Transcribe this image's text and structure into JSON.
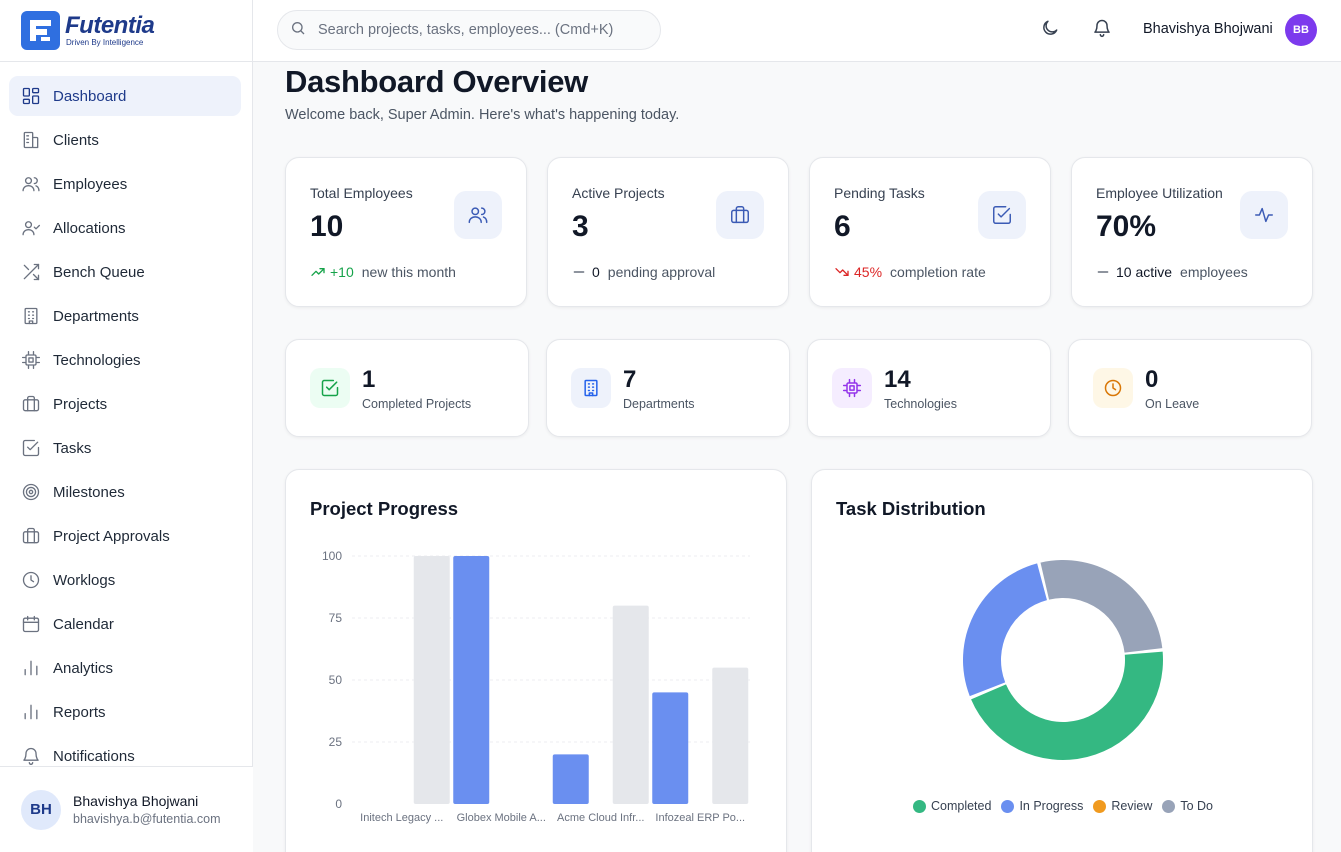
{
  "brand": {
    "name": "Futentia",
    "tagline": "Driven By Intelligence"
  },
  "sidebar": {
    "items": [
      {
        "label": "Dashboard",
        "icon": "dashboard-icon",
        "active": true
      },
      {
        "label": "Clients",
        "icon": "building-icon"
      },
      {
        "label": "Employees",
        "icon": "users-icon"
      },
      {
        "label": "Allocations",
        "icon": "user-check-icon"
      },
      {
        "label": "Bench Queue",
        "icon": "shuffle-icon"
      },
      {
        "label": "Departments",
        "icon": "office-building-icon"
      },
      {
        "label": "Technologies",
        "icon": "cpu-icon"
      },
      {
        "label": "Projects",
        "icon": "briefcase-icon"
      },
      {
        "label": "Tasks",
        "icon": "check-square-icon"
      },
      {
        "label": "Milestones",
        "icon": "target-icon"
      },
      {
        "label": "Project Approvals",
        "icon": "briefcase-icon"
      },
      {
        "label": "Worklogs",
        "icon": "clock-icon"
      },
      {
        "label": "Calendar",
        "icon": "calendar-icon"
      },
      {
        "label": "Analytics",
        "icon": "bar-chart-icon"
      },
      {
        "label": "Reports",
        "icon": "bar-chart-icon"
      },
      {
        "label": "Notifications",
        "icon": "bell-icon"
      }
    ],
    "footer": {
      "initials": "BH",
      "name": "Bhavishya Bhojwani",
      "email": "bhavishya.b@futentia.com"
    }
  },
  "header": {
    "search_placeholder": "Search projects, tasks, employees... (Cmd+K)",
    "user_name": "Bhavishya Bhojwani",
    "user_initials": "BB"
  },
  "page": {
    "title": "Dashboard Overview",
    "subtitle": "Welcome back, Super Admin. Here's what's happening today."
  },
  "stats": [
    {
      "label": "Total Employees",
      "value": "10",
      "trend_value": "+10",
      "trend_text": "new this month",
      "trend": "up",
      "icon": "users-icon"
    },
    {
      "label": "Active Projects",
      "value": "3",
      "trend_value": "0",
      "trend_text": "pending approval",
      "trend": "flat",
      "icon": "briefcase-icon"
    },
    {
      "label": "Pending Tasks",
      "value": "6",
      "trend_value": "45%",
      "trend_text": "completion rate",
      "trend": "down",
      "icon": "check-square-icon"
    },
    {
      "label": "Employee Utilization",
      "value": "70%",
      "trend_value": "10 active",
      "trend_text": "employees",
      "trend": "flat",
      "icon": "activity-icon"
    }
  ],
  "mini_stats": [
    {
      "value": "1",
      "label": "Completed Projects",
      "icon": "check-square-icon",
      "color": "#16a34a",
      "bg": "#ecfdf3"
    },
    {
      "value": "7",
      "label": "Departments",
      "icon": "office-building-icon",
      "color": "#2563eb",
      "bg": "#eef2fb"
    },
    {
      "value": "14",
      "label": "Technologies",
      "icon": "cpu-icon",
      "color": "#9333ea",
      "bg": "#f5edff"
    },
    {
      "value": "0",
      "label": "On Leave",
      "icon": "clock-icon",
      "color": "#d97706",
      "bg": "#fef7e6"
    }
  ],
  "project_progress": {
    "title": "Project Progress",
    "chart_data": {
      "type": "bar",
      "categories": [
        "Initech Legacy ...",
        "Globex Mobile A...",
        "Acme Cloud Infr...",
        "Infozeal ERP Po..."
      ],
      "series": [
        {
          "values": [
            0,
            100,
            20,
            45
          ],
          "color": "#6a8ff0"
        },
        {
          "values": [
            100,
            0,
            80,
            55
          ],
          "color": "#e5e7eb"
        }
      ],
      "yticks": [
        0,
        25,
        50,
        75,
        100
      ],
      "ylim": [
        0,
        100
      ],
      "grid": true
    }
  },
  "task_distribution": {
    "title": "Task Distribution",
    "chart_data": {
      "type": "pie",
      "donut": true,
      "slices": [
        {
          "name": "Completed",
          "value": 5,
          "color": "#34b882"
        },
        {
          "name": "In Progress",
          "value": 3,
          "color": "#6a8ff0"
        },
        {
          "name": "Review",
          "value": 0,
          "color": "#f09a1f"
        },
        {
          "name": "To Do",
          "value": 3,
          "color": "#98a3b8"
        }
      ]
    }
  }
}
